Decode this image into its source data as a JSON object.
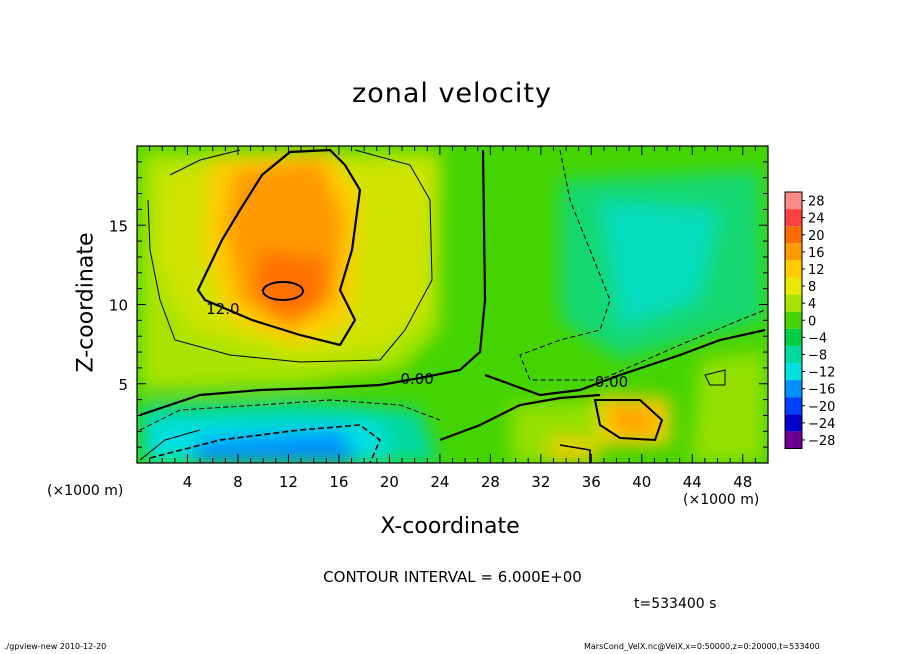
{
  "chart_data": {
    "type": "contour",
    "title": "zonal velocity",
    "xlabel": "X-coordinate",
    "ylabel": "Z-coordinate",
    "x_unit_label": "(×1000 m)",
    "z_unit_label": "(×1000 m)",
    "xlim": [
      0,
      50
    ],
    "ylim": [
      0,
      20
    ],
    "x_ticks": [
      4,
      8,
      12,
      16,
      20,
      24,
      28,
      32,
      36,
      40,
      44,
      48
    ],
    "y_ticks": [
      5,
      10,
      15
    ],
    "colorbar": {
      "levels": [
        28,
        24,
        20,
        16,
        12,
        8,
        4,
        0,
        -4,
        -8,
        -12,
        -16,
        -20,
        -24,
        -28
      ],
      "colors": [
        "#ff8a8a",
        "#ff4040",
        "#ff6a00",
        "#ff9a00",
        "#ffcc00",
        "#e8e800",
        "#a8e400",
        "#44d400",
        "#00cc44",
        "#00d8a0",
        "#00e0e0",
        "#0090ff",
        "#0040ff",
        "#0000c8",
        "#6a0090"
      ]
    },
    "contour_labels": [
      {
        "text": "12.0",
        "x": 6.8,
        "z": 9.4
      },
      {
        "text": "0.00",
        "x": 22.2,
        "z": 5.0
      },
      {
        "text": "0.00",
        "x": 37.6,
        "z": 4.8
      }
    ],
    "contour_interval_text": "CONTOUR INTERVAL = 6.000E+00",
    "time_text": "t=533400 s"
  },
  "footer": {
    "left": "./gpview-new  2010-12-20",
    "right": "MarsCond_VelX.nc@VelX,x=0:50000,z=0:20000,t=533400"
  },
  "colors": {
    "background": "#ffffff",
    "axis": "#000000"
  }
}
